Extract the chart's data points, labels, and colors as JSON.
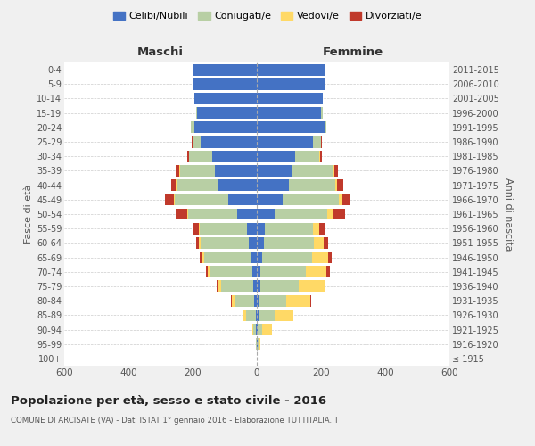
{
  "age_groups": [
    "100+",
    "95-99",
    "90-94",
    "85-89",
    "80-84",
    "75-79",
    "70-74",
    "65-69",
    "60-64",
    "55-59",
    "50-54",
    "45-49",
    "40-44",
    "35-39",
    "30-34",
    "25-29",
    "20-24",
    "15-19",
    "10-14",
    "5-9",
    "0-4"
  ],
  "birth_years": [
    "≤ 1915",
    "1916-1920",
    "1921-1925",
    "1926-1930",
    "1931-1935",
    "1936-1940",
    "1941-1945",
    "1946-1950",
    "1951-1955",
    "1956-1960",
    "1961-1965",
    "1966-1970",
    "1971-1975",
    "1976-1980",
    "1981-1985",
    "1986-1990",
    "1991-1995",
    "1996-2000",
    "2001-2005",
    "2006-2010",
    "2011-2015"
  ],
  "maschi": {
    "celibi": [
      1,
      1,
      2,
      4,
      8,
      10,
      15,
      20,
      25,
      30,
      60,
      90,
      120,
      130,
      140,
      175,
      195,
      185,
      195,
      200,
      200
    ],
    "coniugati": [
      0,
      2,
      10,
      30,
      60,
      100,
      130,
      145,
      150,
      148,
      155,
      165,
      130,
      110,
      70,
      25,
      10,
      5,
      0,
      0,
      0
    ],
    "vedovi": [
      0,
      0,
      3,
      8,
      10,
      10,
      8,
      5,
      5,
      3,
      2,
      2,
      2,
      2,
      1,
      1,
      0,
      0,
      0,
      0,
      0
    ],
    "divorziati": [
      0,
      0,
      0,
      0,
      2,
      5,
      5,
      8,
      10,
      15,
      35,
      30,
      15,
      10,
      5,
      2,
      1,
      0,
      0,
      0,
      0
    ]
  },
  "femmine": {
    "nubili": [
      1,
      2,
      2,
      5,
      8,
      10,
      12,
      18,
      22,
      25,
      55,
      80,
      100,
      110,
      120,
      175,
      210,
      200,
      205,
      215,
      210
    ],
    "coniugate": [
      0,
      3,
      15,
      50,
      85,
      120,
      140,
      155,
      155,
      150,
      165,
      175,
      145,
      130,
      75,
      25,
      8,
      5,
      0,
      0,
      0
    ],
    "vedove": [
      0,
      5,
      30,
      60,
      75,
      80,
      65,
      50,
      30,
      20,
      15,
      8,
      5,
      3,
      2,
      1,
      0,
      0,
      0,
      0,
      0
    ],
    "divorziate": [
      0,
      0,
      0,
      0,
      2,
      5,
      10,
      10,
      15,
      20,
      40,
      30,
      20,
      10,
      5,
      3,
      0,
      0,
      0,
      0,
      0
    ]
  },
  "colors": {
    "celibi": "#4472c4",
    "coniugati": "#b8cfa4",
    "vedovi": "#ffd966",
    "divorziati": "#c0392b"
  },
  "title": "Popolazione per età, sesso e stato civile - 2016",
  "subtitle": "COMUNE DI ARCISATE (VA) - Dati ISTAT 1° gennaio 2016 - Elaborazione TUTTITALIA.IT",
  "xlabel_left": "Maschi",
  "xlabel_right": "Femmine",
  "ylabel_left": "Fasce di età",
  "ylabel_right": "Anni di nascita",
  "xlim": 600,
  "bg_color": "#f0f0f0",
  "plot_bg": "#ffffff",
  "legend_labels": [
    "Celibi/Nubili",
    "Coniugati/e",
    "Vedovi/e",
    "Divorziati/e"
  ]
}
